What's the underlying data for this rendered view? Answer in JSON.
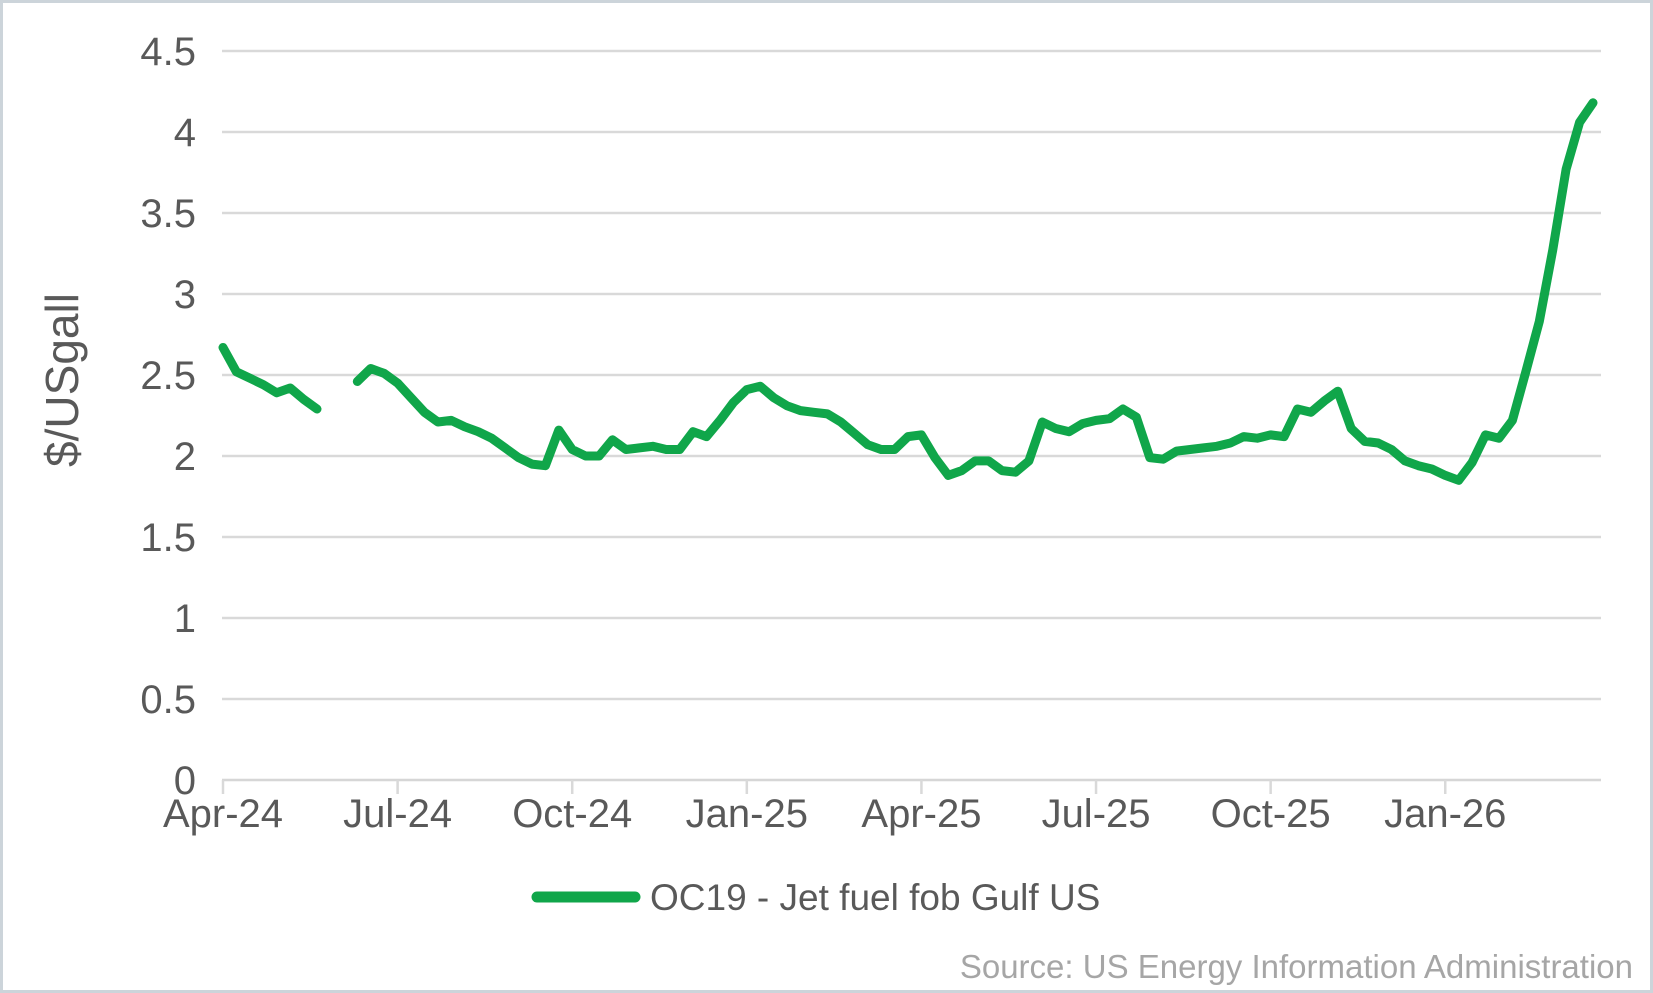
{
  "chart_data": {
    "type": "line",
    "title": "",
    "xlabel": "",
    "ylabel": "$/USgall",
    "ylim": [
      0,
      4.5
    ],
    "ytick_step": 0.5,
    "ytick_labels": [
      "0",
      "0.5",
      "1",
      "1.5",
      "2",
      "2.5",
      "3",
      "3.5",
      "4",
      "4.5"
    ],
    "grid": "horizontal-only",
    "legend_position": "bottom-center",
    "x_tick_labels": [
      "Apr-24",
      "Jul-24",
      "Oct-24",
      "Jan-25",
      "Apr-25",
      "Jul-25",
      "Oct-25",
      "Jan-26"
    ],
    "x_tick_indices": [
      0,
      13,
      26,
      39,
      52,
      65,
      78,
      91
    ],
    "x_frequency": "weekly",
    "note": "null values = gap in plotted line (missing data late May / early Jun 2024)",
    "series": [
      {
        "name": "OC19 - Jet fuel fob Gulf US",
        "color": "#10A64A",
        "dates": [
          "2024-04-05",
          "2024-04-12",
          "2024-04-19",
          "2024-04-26",
          "2024-05-03",
          "2024-05-10",
          "2024-05-17",
          "2024-05-24",
          "2024-05-31",
          "2024-06-07",
          "2024-06-14",
          "2024-06-21",
          "2024-06-28",
          "2024-07-05",
          "2024-07-12",
          "2024-07-19",
          "2024-07-26",
          "2024-08-02",
          "2024-08-09",
          "2024-08-16",
          "2024-08-23",
          "2024-08-30",
          "2024-09-06",
          "2024-09-13",
          "2024-09-20",
          "2024-09-27",
          "2024-10-04",
          "2024-10-11",
          "2024-10-18",
          "2024-10-25",
          "2024-11-01",
          "2024-11-08",
          "2024-11-15",
          "2024-11-22",
          "2024-11-29",
          "2024-12-06",
          "2024-12-13",
          "2024-12-20",
          "2024-12-27",
          "2025-01-03",
          "2025-01-10",
          "2025-01-17",
          "2025-01-24",
          "2025-01-31",
          "2025-02-07",
          "2025-02-14",
          "2025-02-21",
          "2025-02-28",
          "2025-03-07",
          "2025-03-14",
          "2025-03-21",
          "2025-03-28",
          "2025-04-04",
          "2025-04-11",
          "2025-04-18",
          "2025-04-25",
          "2025-05-02",
          "2025-05-09",
          "2025-05-16",
          "2025-05-23",
          "2025-05-30",
          "2025-06-06",
          "2025-06-13",
          "2025-06-20",
          "2025-06-27",
          "2025-07-04",
          "2025-07-11",
          "2025-07-18",
          "2025-07-25",
          "2025-08-01",
          "2025-08-08",
          "2025-08-15",
          "2025-08-22",
          "2025-08-29",
          "2025-09-05",
          "2025-09-12",
          "2025-09-19",
          "2025-09-26",
          "2025-10-03",
          "2025-10-10",
          "2025-10-17",
          "2025-10-24",
          "2025-10-31",
          "2025-11-07",
          "2025-11-14",
          "2025-11-21",
          "2025-11-28",
          "2025-12-05",
          "2025-12-12",
          "2025-12-19",
          "2025-12-26",
          "2026-01-02",
          "2026-01-09",
          "2026-01-16",
          "2026-01-23",
          "2026-01-30",
          "2026-02-06",
          "2026-02-13",
          "2026-02-20",
          "2026-02-27",
          "2026-03-06",
          "2026-03-13",
          "2026-03-20"
        ],
        "values": [
          2.67,
          2.52,
          2.48,
          2.44,
          2.39,
          2.42,
          2.35,
          2.29,
          null,
          null,
          2.46,
          2.54,
          2.51,
          2.45,
          2.36,
          2.27,
          2.21,
          2.22,
          2.18,
          2.15,
          2.11,
          2.05,
          1.99,
          1.95,
          1.94,
          2.16,
          2.04,
          2.0,
          2.0,
          2.1,
          2.04,
          2.05,
          2.06,
          2.04,
          2.04,
          2.15,
          2.12,
          2.22,
          2.33,
          2.41,
          2.43,
          2.36,
          2.31,
          2.28,
          2.27,
          2.26,
          2.21,
          2.14,
          2.07,
          2.04,
          2.04,
          2.12,
          2.13,
          1.99,
          1.88,
          1.91,
          1.97,
          1.97,
          1.91,
          1.9,
          1.97,
          2.21,
          2.17,
          2.15,
          2.2,
          2.22,
          2.23,
          2.29,
          2.24,
          1.99,
          1.98,
          2.03,
          2.04,
          2.05,
          2.06,
          2.08,
          2.12,
          2.11,
          2.13,
          2.12,
          2.29,
          2.27,
          2.34,
          2.4,
          2.17,
          2.09,
          2.08,
          2.04,
          1.97,
          1.94,
          1.92,
          1.88,
          1.85,
          1.96,
          2.13,
          2.11,
          2.22,
          2.52,
          2.83,
          3.27,
          3.77,
          4.06,
          4.18
        ]
      }
    ],
    "source_note": "Source: US Energy Information Administration"
  },
  "legend": {
    "label": "OC19 - Jet fuel fob Gulf US"
  },
  "axes": {
    "y_title": "$/USgall"
  },
  "colors": {
    "series_green": "#10A64A",
    "gridline": "#d9d9d9",
    "axis_line": "#d6d6d6",
    "tick_text": "#595959",
    "source_text": "#a6a6a6",
    "frame_border": "#ccd4da",
    "background": "#ffffff"
  }
}
